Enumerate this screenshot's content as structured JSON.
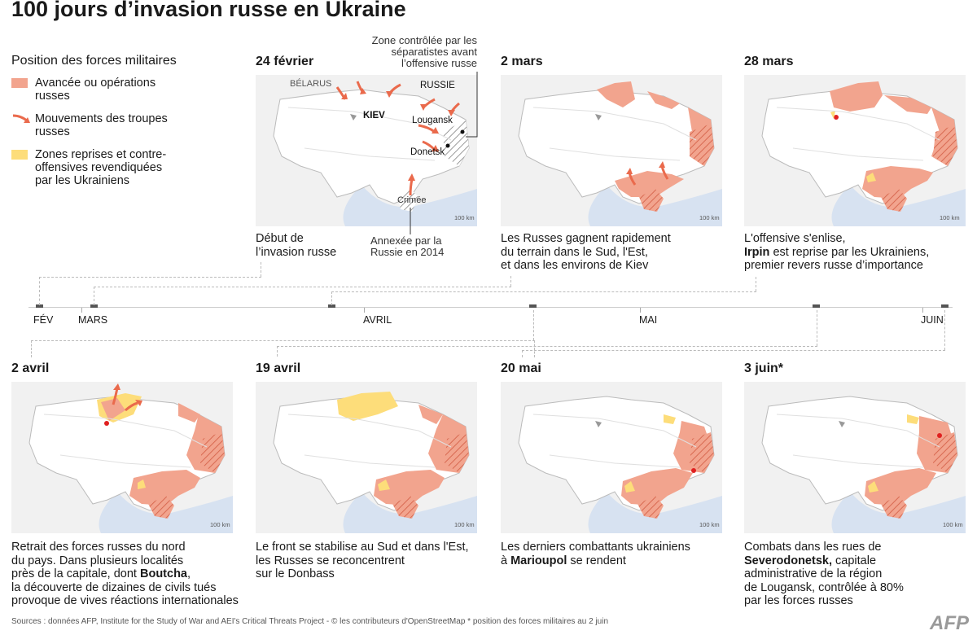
{
  "title": "100 jours d’invasion russe en Ukraine",
  "legend": {
    "title": "Position des forces militaires",
    "items": [
      {
        "label": "Avancée ou opérations russes",
        "color": "#f2a48e"
      },
      {
        "label": "Mouvements des troupes russes",
        "color": "#ea6a4c"
      },
      {
        "label": "Zones reprises et contre-offensives revendiquées par les Ukrainiens",
        "color": "#fddd7a"
      }
    ]
  },
  "annotations": {
    "separatist": "Zone contrôlée par les séparatistes avant l’offensive russe",
    "annexed": "Annexée par la Russie en 2014"
  },
  "map_labels": {
    "belarus": "BÉLARUS",
    "russia": "RUSSIE",
    "kiev": "KIEV",
    "lougansk": "Lougansk",
    "donetsk": "Donetsk",
    "crimea": "Crimée",
    "scale": "100 km"
  },
  "panels": [
    {
      "date": "24 février",
      "caption": [
        "Début de",
        "l’invasion russe"
      ]
    },
    {
      "date": "2 mars",
      "caption": [
        "Les Russes gagnent rapidement",
        "du terrain dans le Sud, l'Est,",
        "et dans les environs de Kiev"
      ]
    },
    {
      "date": "28 mars",
      "caption_parts": {
        "l1": "L'offensive s'enlise,",
        "bold": "Irpin",
        "l2": " est reprise par les Ukrainiens,",
        "l3": "premier revers russe d’importance"
      }
    },
    {
      "date": "2 avril",
      "caption_parts": {
        "l1": "Retrait des forces russes du nord",
        "l2": "du pays. Dans plusieurs localités",
        "l3": "près de la capitale, dont ",
        "bold": "Boutcha",
        "l3b": ",",
        "l4": "la découverte de dizaines de civils tués",
        "l5": "provoque de vives réactions internationales"
      }
    },
    {
      "date": "19 avril",
      "caption": [
        "Le front se stabilise au Sud et dans l'Est,",
        "les Russes se reconcentrent",
        "sur le Donbass"
      ]
    },
    {
      "date": "20 mai",
      "caption_parts": {
        "l1": "Les derniers combattants ukrainiens",
        "pre": "à ",
        "bold": "Marioupol",
        "post": " se rendent"
      }
    },
    {
      "date": "3 juin*",
      "caption_parts": {
        "l1": "Combats dans les rues de",
        "bold": "Severodonetsk,",
        "post": " capitale",
        "l3": "administrative de la région",
        "l4": "de Lougansk, contrôlée à 80%",
        "l5": "par les forces russes"
      }
    }
  ],
  "timeline": {
    "months": [
      "FÉV",
      "MARS",
      "AVRIL",
      "MAI",
      "JUIN"
    ]
  },
  "source": "Sources : données AFP, Institute for the Study of War and AEI's Critical Threats Project - © les contributeurs d'OpenStreetMap     * position des forces militaires au 2 juin",
  "logo": "AFP"
}
